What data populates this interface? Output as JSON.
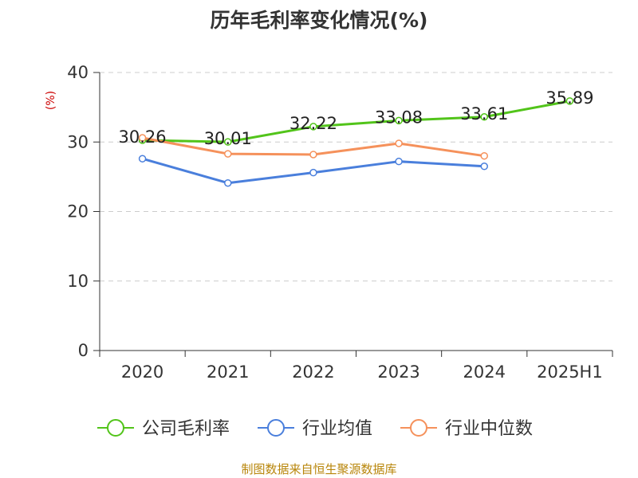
{
  "chart_data": {
    "type": "line",
    "title": "历年毛利率变化情况(%)",
    "ylabel": "(%)",
    "xlabel": "",
    "categories": [
      "2020",
      "2021",
      "2022",
      "2023",
      "2024",
      "2025H1"
    ],
    "ylim": [
      0,
      40
    ],
    "yticks": [
      0,
      10,
      20,
      30,
      40
    ],
    "grid": true,
    "legend_position": "bottom",
    "series": [
      {
        "name": "公司毛利率",
        "color": "#52c41a",
        "values": [
          30.26,
          30.01,
          32.22,
          33.08,
          33.61,
          35.89
        ],
        "labels": [
          "30.26",
          "30.01",
          "32.22",
          "33.08",
          "33.61",
          "35.89"
        ]
      },
      {
        "name": "行业均值",
        "color": "#4a7fdc",
        "values": [
          27.6,
          24.1,
          25.6,
          27.2,
          26.5,
          null
        ]
      },
      {
        "name": "行业中位数",
        "color": "#f5915b",
        "values": [
          30.6,
          28.3,
          28.2,
          29.8,
          28.0,
          null
        ]
      }
    ]
  },
  "source_text": "制图数据来自恒生聚源数据库"
}
